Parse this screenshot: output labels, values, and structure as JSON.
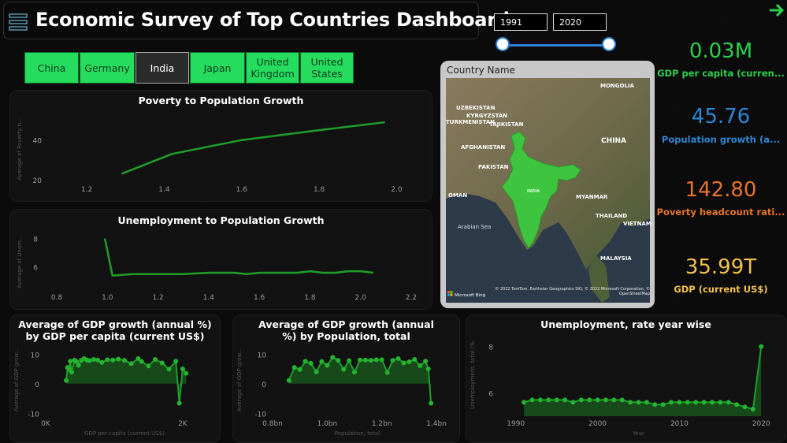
{
  "header": {
    "title": "Economic Survey of Top Countries Dashboard"
  },
  "date_range": {
    "start": "1991",
    "end": "2020",
    "slider_start_fraction": 0,
    "slider_end_fraction": 1
  },
  "countries": [
    {
      "label": "China",
      "selected": false
    },
    {
      "label": "Germany",
      "selected": false
    },
    {
      "label": "India",
      "selected": true
    },
    {
      "label": "Japan",
      "selected": false
    },
    {
      "label": "United Kingdom",
      "selected": false
    },
    {
      "label": "United States",
      "selected": false
    }
  ],
  "map": {
    "title": "Country Name",
    "labels": [
      "MONGOLIA",
      "UZBEKISTAN",
      "KYRGYZSTAN",
      "TURKMENISTAN",
      "TAJIKISTAN",
      "CHINA",
      "AFGHANISTAN",
      "PAKISTAN",
      "INDIA",
      "OMAN",
      "MYANMAR",
      "THAILAND",
      "VIETNAM",
      "Arabian Sea",
      "MALAYSIA"
    ],
    "attribution": "© 2022 TomTom, Earthstar Geographics SIO, © 2022 Microsoft Corporation, © OpenStreetMap",
    "logo": "Microsoft Bing",
    "highlight_color": "#3ec43e"
  },
  "kpis": [
    {
      "value": "0.03M",
      "label": "GDP per capita (curren...",
      "color": "#2bd14a"
    },
    {
      "value": "45.76",
      "label": "Population growth (a...",
      "color": "#2e86d4"
    },
    {
      "value": "142.80",
      "label": "Poverty headcount rati...",
      "color": "#e8742a"
    },
    {
      "value": "35.99T",
      "label": "GDP (current US$)",
      "color": "#f2c14e"
    }
  ],
  "colors": {
    "accent": "#25dc5e",
    "line": "#1f9e2a",
    "area": "#1a5c1e"
  },
  "chart_data": [
    {
      "id": "poverty",
      "type": "line",
      "title": "Poverty to Population Growth",
      "ylabel": "Average of Poverty h...",
      "xlim": [
        1.1,
        2.05
      ],
      "ylim": [
        18,
        53
      ],
      "xticks": [
        1.2,
        1.4,
        1.6,
        1.8,
        2.0
      ],
      "xtick_labels": [
        "1.2",
        "1.4",
        "1.6",
        "1.8",
        "2.0"
      ],
      "yticks": [
        20,
        40
      ],
      "x": [
        1.29,
        1.42,
        1.6,
        1.8,
        1.97
      ],
      "y": [
        23,
        33,
        40,
        45,
        49
      ]
    },
    {
      "id": "unemployment",
      "type": "line",
      "title": "Unemployment to Population Growth",
      "ylabel": "Average of Unem...",
      "xlim": [
        0.75,
        2.25
      ],
      "ylim": [
        4.6,
        8.7
      ],
      "xticks": [
        0.8,
        1.0,
        1.2,
        1.4,
        1.6,
        1.8,
        2.0,
        2.2
      ],
      "xtick_labels": [
        "0.8",
        "1.0",
        "1.2",
        "1.4",
        "1.6",
        "1.8",
        "2.0",
        "2.2"
      ],
      "yticks": [
        6,
        8
      ],
      "x": [
        0.99,
        1.02,
        1.1,
        1.2,
        1.3,
        1.4,
        1.5,
        1.55,
        1.6,
        1.7,
        1.75,
        1.8,
        1.85,
        1.9,
        1.95,
        2.0,
        2.05
      ],
      "y": [
        8.0,
        5.4,
        5.5,
        5.5,
        5.5,
        5.6,
        5.6,
        5.5,
        5.6,
        5.6,
        5.6,
        5.7,
        5.6,
        5.6,
        5.7,
        5.7,
        5.6
      ]
    },
    {
      "id": "gdp_vs_gdppc",
      "type": "area",
      "title": "Average of GDP growth (annual %) by GDP per capita (current US$)",
      "xlabel": "GDP per capita (current US$)",
      "ylabel": "Average of GDP grow...",
      "xlim": [
        0,
        2300
      ],
      "ylim": [
        -11,
        13
      ],
      "xticks": [
        0,
        2000
      ],
      "xtick_labels": [
        "0K",
        "2K"
      ],
      "yticks": [
        10,
        0,
        -10
      ],
      "x": [
        300,
        320,
        340,
        360,
        380,
        420,
        450,
        480,
        520,
        560,
        600,
        640,
        700,
        760,
        820,
        900,
        980,
        1060,
        1150,
        1250,
        1350,
        1400,
        1500,
        1600,
        1700,
        1800,
        1900,
        1950,
        2000,
        2050
      ],
      "y": [
        1.1,
        5.5,
        4.8,
        7.6,
        3.9,
        8.0,
        7.5,
        6.2,
        7.9,
        8.5,
        8.0,
        7.8,
        8.2,
        8.0,
        7.2,
        8.1,
        8.0,
        8.3,
        7.9,
        6.8,
        8.5,
        7.5,
        6.0,
        8.2,
        7.0,
        4.9,
        7.6,
        -6.6,
        5.0,
        3.5
      ]
    },
    {
      "id": "gdp_vs_population",
      "type": "area",
      "title": "Average of GDP growth (annual %) by Population, total",
      "xlabel": "Population, total",
      "ylabel": "Average of GDP grow...",
      "xlim": [
        0.8,
        1.42
      ],
      "ylim": [
        -11,
        13
      ],
      "xticks": [
        0.8,
        1.0,
        1.2,
        1.4
      ],
      "xtick_labels": [
        "0.8bn",
        "1.0bn",
        "1.2bn",
        "1.4bn"
      ],
      "yticks": [
        10,
        0,
        -10
      ],
      "x": [
        0.86,
        0.88,
        0.9,
        0.92,
        0.94,
        0.96,
        0.98,
        1.0,
        1.02,
        1.04,
        1.06,
        1.08,
        1.1,
        1.12,
        1.14,
        1.16,
        1.18,
        1.2,
        1.22,
        1.24,
        1.26,
        1.28,
        1.3,
        1.32,
        1.34,
        1.36,
        1.37,
        1.38
      ],
      "y": [
        1.1,
        5.5,
        4.8,
        7.6,
        6.9,
        4.0,
        7.5,
        6.2,
        8.9,
        7.9,
        4.8,
        7.8,
        3.9,
        8.0,
        8.0,
        7.9,
        8.1,
        8.1,
        3.8,
        7.9,
        8.5,
        7.0,
        7.4,
        8.2,
        6.1,
        7.6,
        5.0,
        -6.6
      ]
    },
    {
      "id": "unemployment_year",
      "type": "area",
      "title": "Unemployment, rate year wise",
      "xlabel": "Year",
      "ylabel": "Unemployment, total (%",
      "xlim": [
        1988,
        2022
      ],
      "ylim": [
        5.0,
        8.6
      ],
      "xticks": [
        1990,
        2000,
        2010,
        2020
      ],
      "xtick_labels": [
        "1990",
        "2000",
        "2010",
        "2020"
      ],
      "yticks": [
        8,
        6
      ],
      "x": [
        1991,
        1992,
        1993,
        1994,
        1995,
        1996,
        1997,
        1998,
        1999,
        2000,
        2001,
        2002,
        2003,
        2004,
        2005,
        2006,
        2007,
        2008,
        2009,
        2010,
        2011,
        2012,
        2013,
        2014,
        2015,
        2016,
        2017,
        2018,
        2019,
        2020
      ],
      "y": [
        5.6,
        5.7,
        5.7,
        5.7,
        5.7,
        5.7,
        5.6,
        5.7,
        5.7,
        5.7,
        5.7,
        5.7,
        5.7,
        5.6,
        5.6,
        5.6,
        5.5,
        5.5,
        5.6,
        5.6,
        5.6,
        5.6,
        5.6,
        5.6,
        5.6,
        5.6,
        5.5,
        5.4,
        5.3,
        8.0
      ]
    }
  ]
}
